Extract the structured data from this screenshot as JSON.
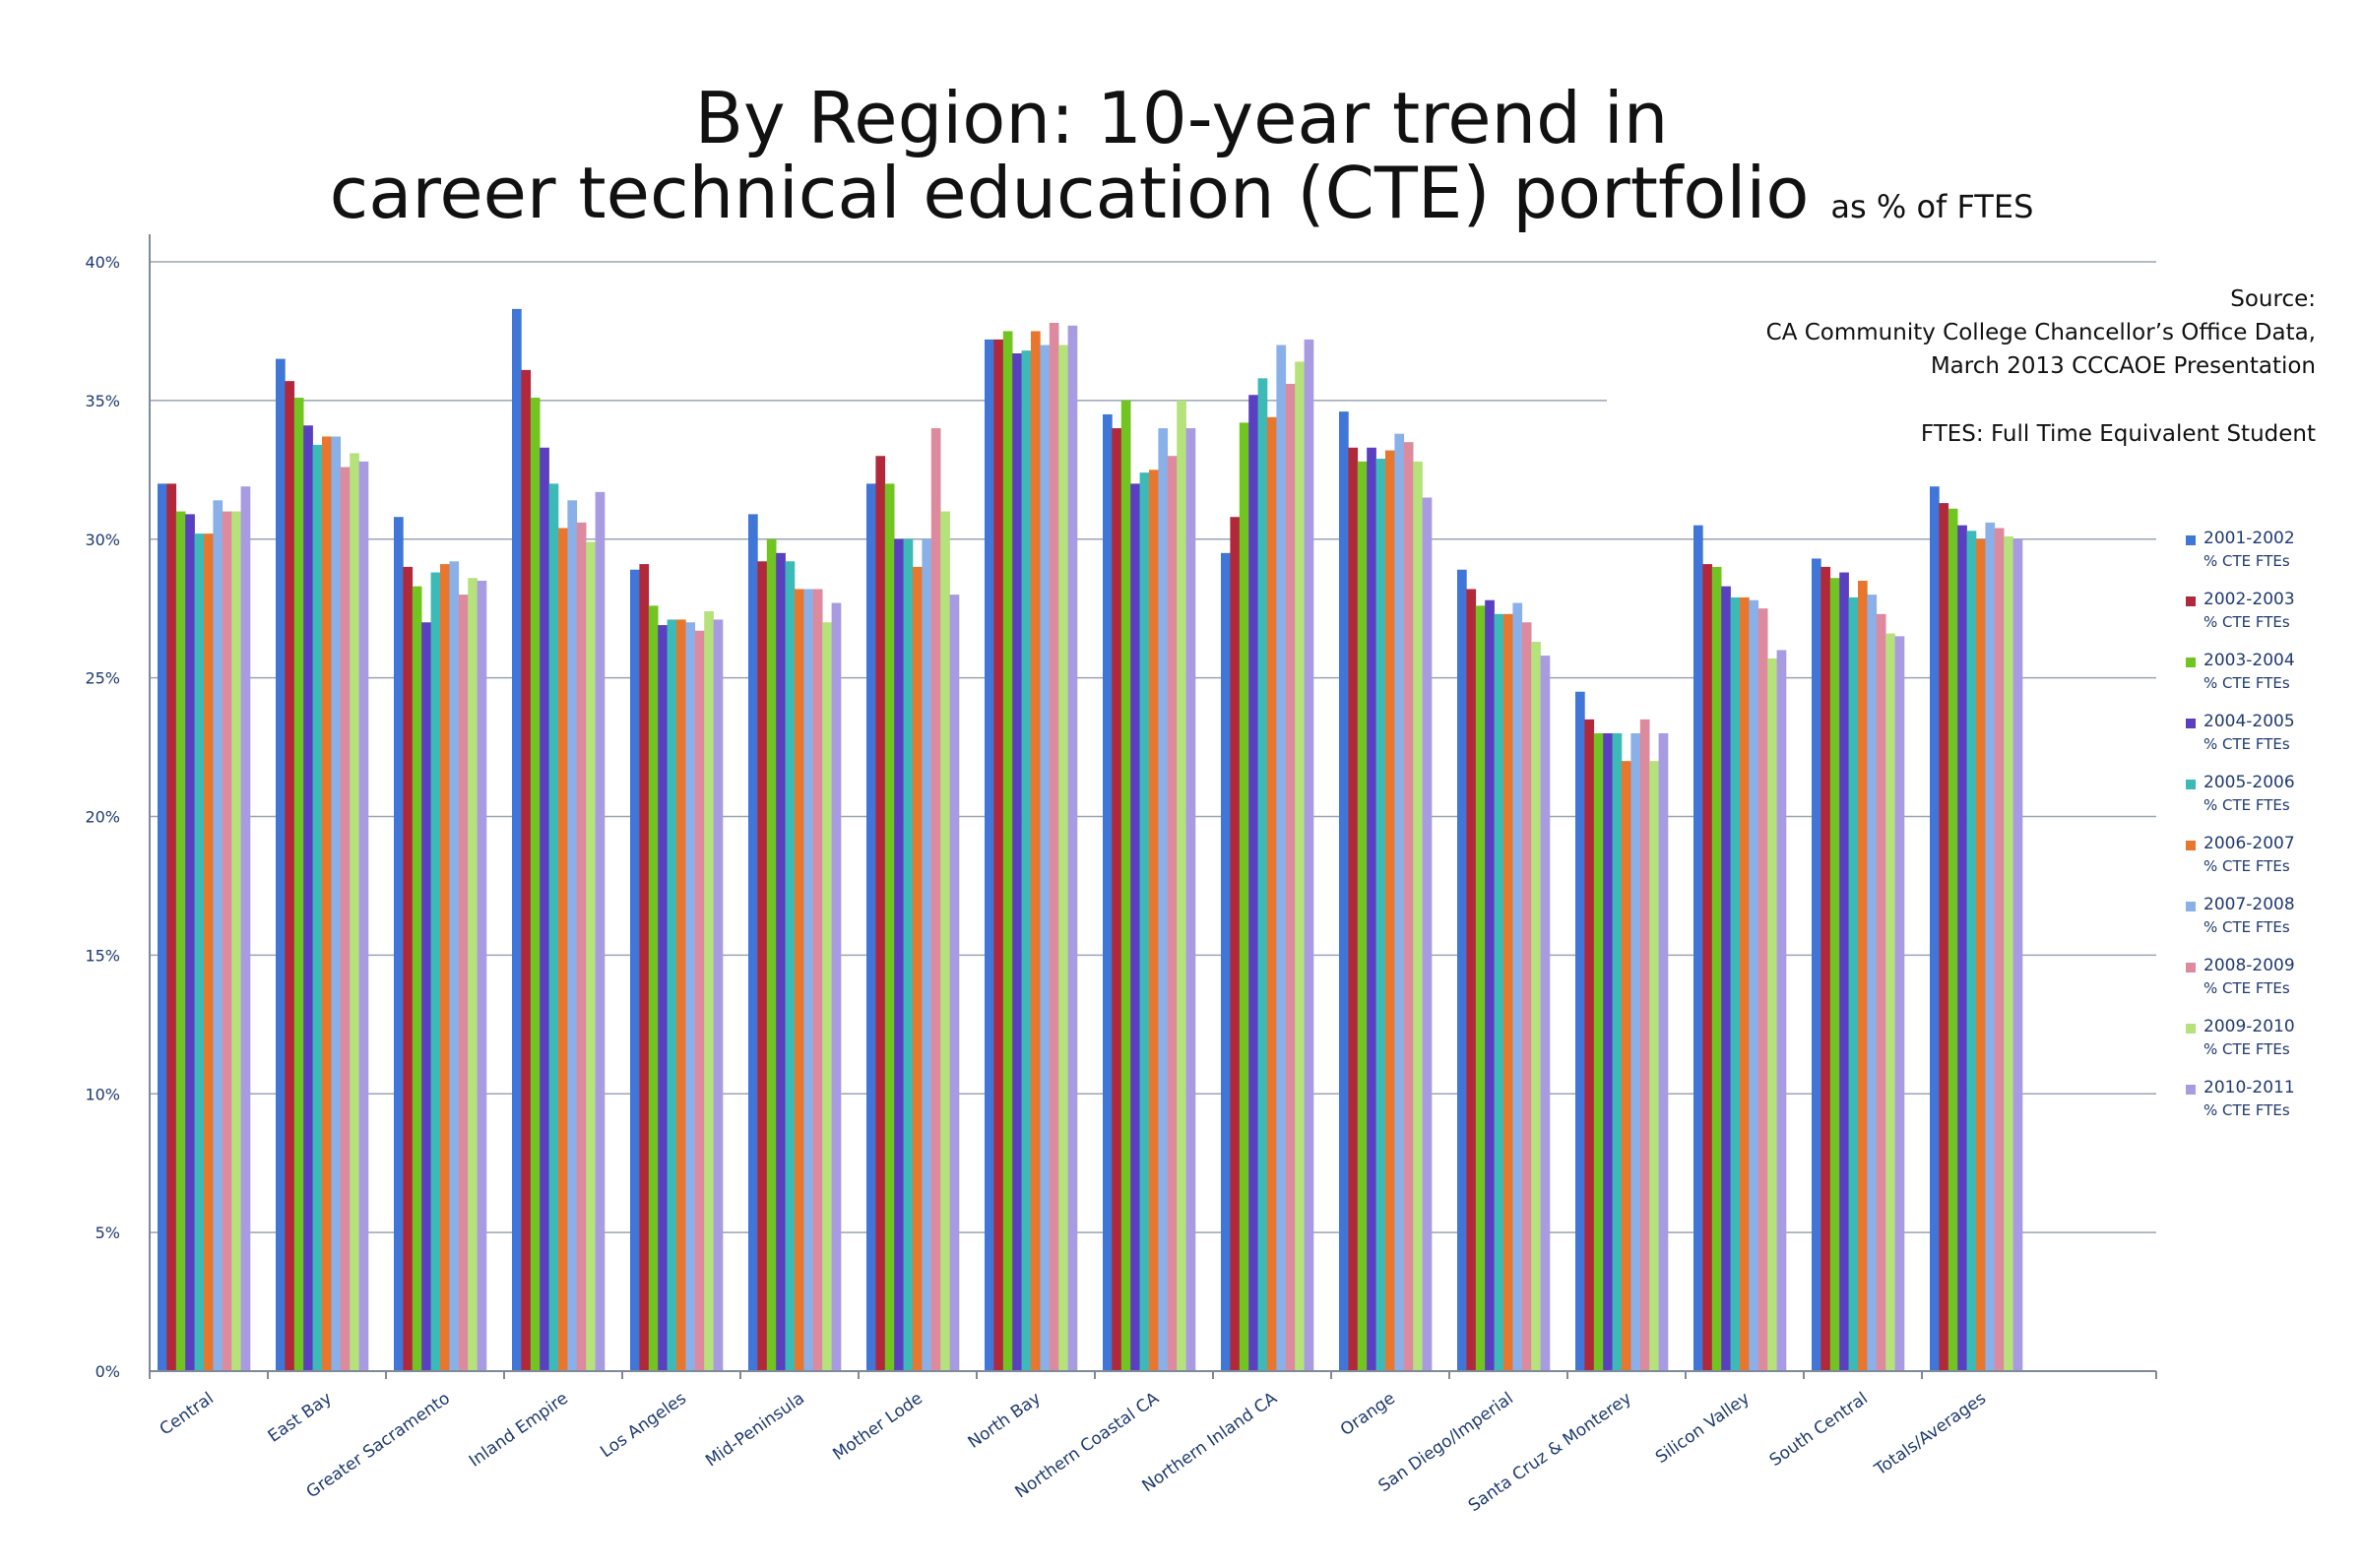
{
  "header": {
    "title_line1": "By Region:  10-year trend in",
    "title_line2": "career technical education (CTE) portfolio",
    "title_suffix": "as % of FTES"
  },
  "notes": {
    "source_label": "Source:",
    "source_line1": "CA Community College Chancellor’s Office Data,",
    "source_line2": "March 2013 CCCAOE  Presentation",
    "ftes_def": "FTES:  Full Time Equivalent Student"
  },
  "legend_unit": "% CTE FTEs",
  "chart_data": {
    "type": "bar",
    "ylim": [
      0,
      40
    ],
    "y_ticks": [
      "0%",
      "5%",
      "10%",
      "15%",
      "20%",
      "25%",
      "30%",
      "35%",
      "40%"
    ],
    "y_tick_values": [
      0,
      5,
      10,
      15,
      20,
      25,
      30,
      35,
      40
    ],
    "gridlines": true,
    "legend_position": "right",
    "categories": [
      "Central",
      "East Bay",
      "Greater Sacramento",
      "Inland Empire",
      "Los Angeles",
      "Mid-Peninsula",
      "Mother Lode",
      "North Bay",
      "Northern Coastal CA",
      "Northern Inland CA",
      "Orange",
      "San Diego/Imperial",
      "Santa Cruz & Monterey",
      "Silicon Valley",
      "South Central",
      "Totals/Averages"
    ],
    "series": [
      {
        "name": "2001-2002",
        "color": "#3f76d8",
        "values": [
          32.0,
          36.5,
          30.8,
          38.3,
          28.9,
          30.9,
          32.0,
          37.2,
          34.5,
          29.5,
          34.6,
          28.9,
          24.5,
          30.5,
          29.3,
          31.9
        ]
      },
      {
        "name": "2002-2003",
        "color": "#b0283a",
        "values": [
          32.0,
          35.7,
          29.0,
          36.1,
          29.1,
          29.2,
          33.0,
          37.2,
          34.0,
          30.8,
          33.3,
          28.2,
          23.5,
          29.1,
          29.0,
          31.3
        ]
      },
      {
        "name": "2003-2004",
        "color": "#72c421",
        "values": [
          31.0,
          35.1,
          28.3,
          35.1,
          27.6,
          30.0,
          32.0,
          37.5,
          35.0,
          34.2,
          32.8,
          27.6,
          23.0,
          29.0,
          28.6,
          31.1
        ]
      },
      {
        "name": "2004-2005",
        "color": "#5a3fc0",
        "values": [
          30.9,
          34.1,
          27.0,
          33.3,
          26.9,
          29.5,
          30.0,
          36.7,
          32.0,
          35.2,
          33.3,
          27.8,
          23.0,
          28.3,
          28.8,
          30.5
        ]
      },
      {
        "name": "2005-2006",
        "color": "#3bbab8",
        "values": [
          30.2,
          33.4,
          28.8,
          32.0,
          27.1,
          29.2,
          30.0,
          36.8,
          32.4,
          35.8,
          32.9,
          27.3,
          23.0,
          27.9,
          27.9,
          30.3
        ]
      },
      {
        "name": "2006-2007",
        "color": "#e8762c",
        "values": [
          30.2,
          33.7,
          29.1,
          30.4,
          27.1,
          28.2,
          29.0,
          37.5,
          32.5,
          34.4,
          33.2,
          27.3,
          22.0,
          27.9,
          28.5,
          30.0
        ]
      },
      {
        "name": "2007-2008",
        "color": "#8ab0ea",
        "values": [
          31.4,
          33.7,
          29.2,
          31.4,
          27.0,
          28.2,
          30.0,
          37.0,
          34.0,
          37.0,
          33.8,
          27.7,
          23.0,
          27.8,
          28.0,
          30.6
        ]
      },
      {
        "name": "2008-2009",
        "color": "#dd8a9e",
        "values": [
          31.0,
          32.6,
          28.0,
          30.6,
          26.7,
          28.2,
          34.0,
          37.8,
          33.0,
          35.6,
          33.5,
          27.0,
          23.5,
          27.5,
          27.3,
          30.4
        ]
      },
      {
        "name": "2009-2010",
        "color": "#b5e27a",
        "values": [
          31.0,
          33.1,
          28.6,
          29.9,
          27.4,
          27.0,
          31.0,
          37.0,
          35.0,
          36.4,
          32.8,
          26.3,
          22.0,
          25.7,
          26.6,
          30.1
        ]
      },
      {
        "name": "2010-2011",
        "color": "#a89be2",
        "values": [
          31.9,
          32.8,
          28.5,
          31.7,
          27.1,
          27.7,
          28.0,
          37.7,
          34.0,
          37.2,
          31.5,
          25.8,
          23.0,
          26.0,
          26.5,
          30.0
        ]
      }
    ]
  }
}
